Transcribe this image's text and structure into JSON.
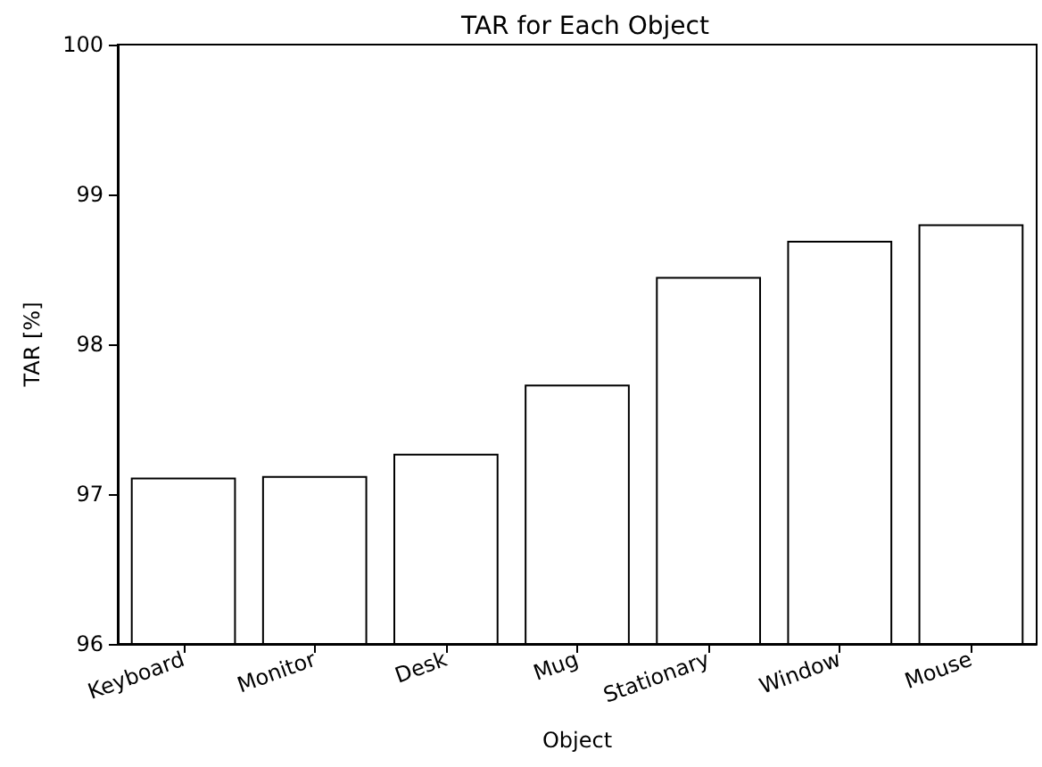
{
  "chart_data": {
    "type": "bar",
    "title": "TAR for Each Object",
    "xlabel": "Object",
    "ylabel": "TAR [%]",
    "categories": [
      "Keyboard",
      "Monitor",
      "Desk",
      "Mug",
      "Stationary",
      "Window",
      "Mouse"
    ],
    "values": [
      97.11,
      97.12,
      97.27,
      97.73,
      98.45,
      98.69,
      98.8
    ],
    "color": "#ffffff",
    "ylim": [
      96,
      100
    ],
    "yticks": [
      96,
      97,
      98,
      99,
      100
    ],
    "grid": false
  }
}
